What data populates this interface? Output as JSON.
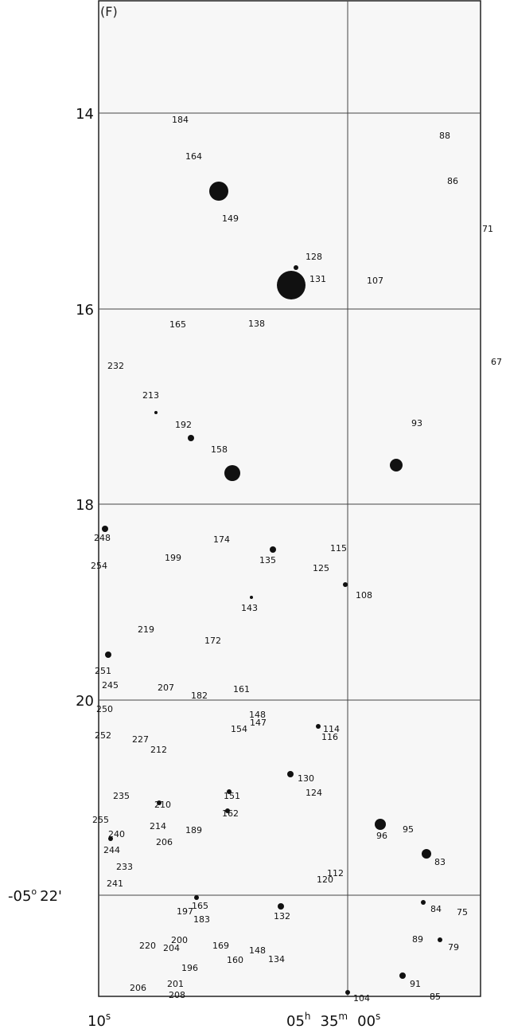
{
  "panel_label": "(F)",
  "dec_ticks": [
    "14",
    "16",
    "18",
    "20"
  ],
  "dec_last": {
    "deg": "-05",
    "deg_mark": "o",
    "minutes": "22'"
  },
  "ra_left": {
    "value": "10",
    "unit": "s"
  },
  "ra_right": {
    "h": "05",
    "h_unit": "h",
    "m": "35",
    "m_unit": "m",
    "s": "00",
    "s_unit": "s"
  },
  "sources": [
    "184",
    "164",
    "149",
    "128",
    "131",
    "107",
    "88",
    "86",
    "71",
    "165",
    "138",
    "232",
    "213",
    "192",
    "158",
    "67",
    "93",
    "248",
    "174",
    "254",
    "199",
    "135",
    "115",
    "125",
    "108",
    "143",
    "219",
    "172",
    "251",
    "245",
    "207",
    "182",
    "161",
    "250",
    "148",
    "147",
    "154",
    "114",
    "116",
    "252",
    "227",
    "212",
    "130",
    "124",
    "235",
    "210",
    "151",
    "162",
    "255",
    "214",
    "240",
    "189",
    "206",
    "95",
    "96",
    "244",
    "233",
    "83",
    "241",
    "112",
    "120",
    "165",
    "197",
    "183",
    "132",
    "84",
    "75",
    "148",
    "89",
    "220",
    "200",
    "204",
    "169",
    "79",
    "160",
    "134",
    "196",
    "91",
    "201",
    "206",
    "208",
    "104",
    "85"
  ]
}
